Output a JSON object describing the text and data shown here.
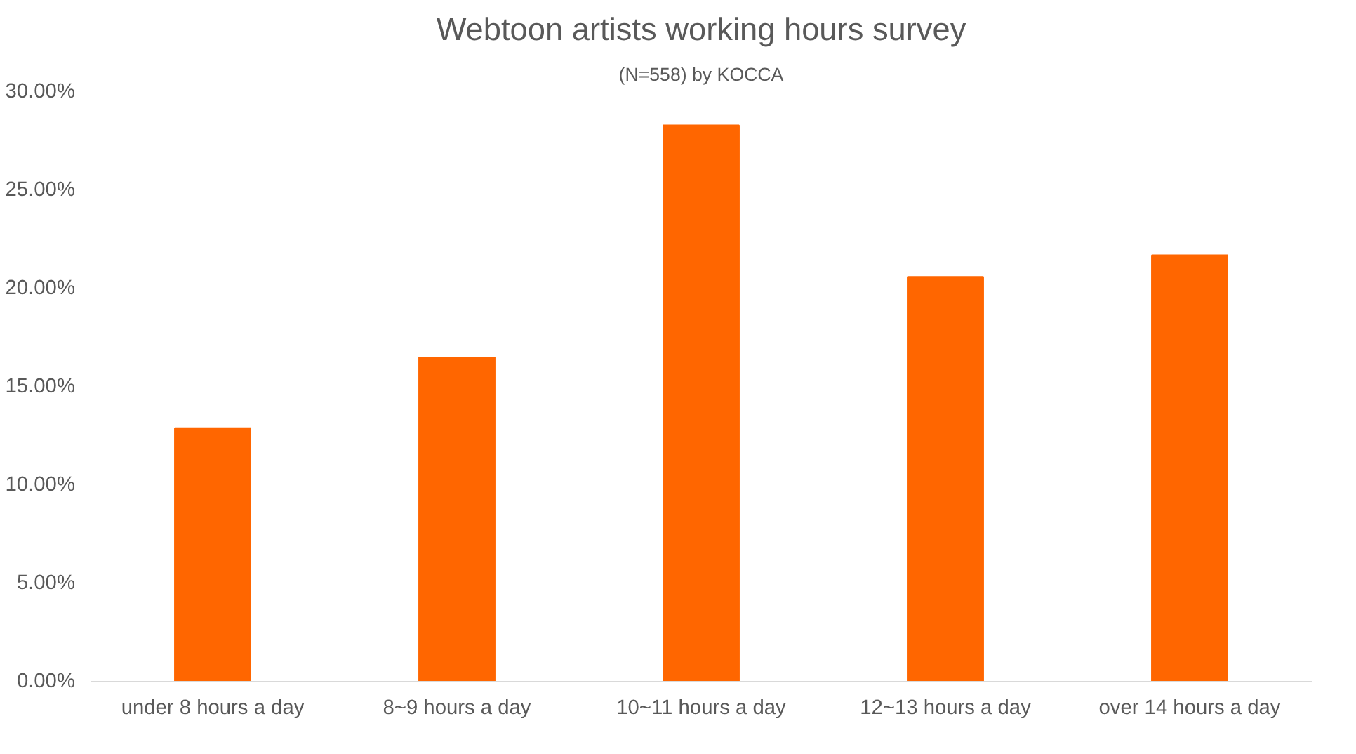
{
  "chart_data": {
    "type": "bar",
    "title": "Webtoon artists working hours survey",
    "subtitle": "(N=558) by KOCCA",
    "categories": [
      "under 8 hours a day",
      "8~9 hours a day",
      "10~11 hours a day",
      "12~13 hours a day",
      "over 14 hours a day"
    ],
    "values": [
      12.9,
      16.5,
      28.3,
      20.6,
      21.7
    ],
    "color": "#ff6600",
    "ylim": [
      0,
      30
    ],
    "yticks": [
      {
        "value": 0,
        "label": "0.00%"
      },
      {
        "value": 5,
        "label": "5.00%"
      },
      {
        "value": 10,
        "label": "10.00%"
      },
      {
        "value": 15,
        "label": "15.00%"
      },
      {
        "value": 20,
        "label": "20.00%"
      },
      {
        "value": 25,
        "label": "25.00%"
      },
      {
        "value": 30,
        "label": "30.00%"
      }
    ],
    "grid": false
  }
}
